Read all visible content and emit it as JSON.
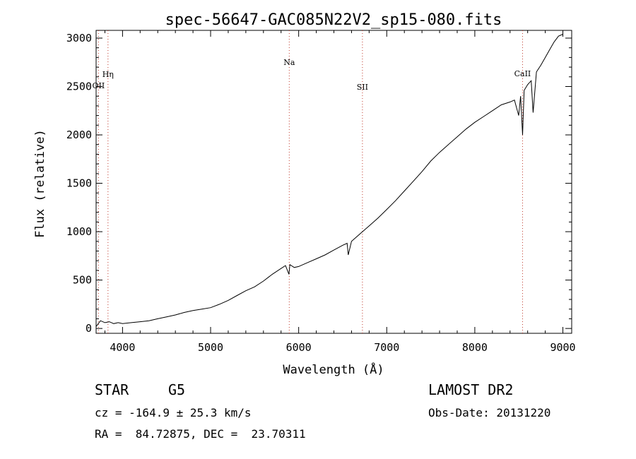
{
  "chart_data": {
    "type": "line",
    "title": "spec-56647-GAC085N22V2_sp15-080.fits",
    "xlabel": "Wavelength (Å)",
    "ylabel": "Flux (relative)",
    "xlim": [
      3700,
      9100
    ],
    "ylim": [
      -50,
      3080
    ],
    "x_ticks": [
      4000,
      5000,
      6000,
      7000,
      8000,
      9000
    ],
    "y_ticks": [
      0,
      500,
      1000,
      1500,
      2000,
      2500,
      3000
    ],
    "grid": false,
    "series": [
      {
        "x": [
          3700,
          3750,
          3800,
          3850,
          3900,
          3950,
          4000,
          4100,
          4200,
          4300,
          4400,
          4500,
          4600,
          4700,
          4800,
          4900,
          5000,
          5100,
          5200,
          5300,
          5400,
          5500,
          5600,
          5700,
          5800,
          5850,
          5890,
          5900,
          5950,
          6000,
          6100,
          6200,
          6300,
          6400,
          6500,
          6550,
          6563,
          6600,
          6700,
          6800,
          6900,
          7000,
          7100,
          7200,
          7300,
          7400,
          7500,
          7600,
          7700,
          7800,
          7900,
          8000,
          8100,
          8200,
          8300,
          8400,
          8450,
          8498,
          8520,
          8542,
          8560,
          8600,
          8640,
          8662,
          8700,
          8750,
          8800,
          8850,
          8900,
          8950,
          9000
        ],
        "y": [
          20,
          80,
          60,
          70,
          50,
          60,
          50,
          60,
          70,
          80,
          100,
          120,
          140,
          165,
          185,
          200,
          215,
          250,
          290,
          340,
          390,
          430,
          490,
          560,
          620,
          650,
          560,
          660,
          630,
          640,
          680,
          720,
          760,
          810,
          860,
          880,
          760,
          900,
          980,
          1060,
          1140,
          1230,
          1320,
          1420,
          1520,
          1620,
          1730,
          1820,
          1900,
          1980,
          2060,
          2130,
          2190,
          2250,
          2310,
          2340,
          2360,
          2200,
          2400,
          2000,
          2460,
          2520,
          2560,
          2230,
          2650,
          2720,
          2800,
          2880,
          2960,
          3020,
          3040
        ]
      }
    ],
    "lines": [
      {
        "label": "Hη",
        "x": 3835
      },
      {
        "label": "OII",
        "x": 3727
      },
      {
        "label": "Na",
        "x": 5893
      },
      {
        "label": "SII",
        "x": 6724
      },
      {
        "label": "CaII",
        "x": 8542
      }
    ]
  },
  "info": {
    "object_type": "STAR",
    "subclass": "G5",
    "survey": "LAMOST DR2",
    "cz": "cz = -164.9 ± 25.3 km/s",
    "obs_date": "Obs-Date: 20131220",
    "coords": "RA =  84.72875, DEC =  23.70311"
  }
}
